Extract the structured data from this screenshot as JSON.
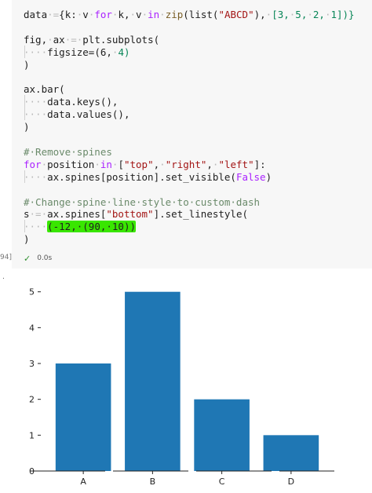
{
  "code_lines": [
    [
      [
        "data",
        "bl"
      ],
      [
        "·=",
        "ws"
      ],
      [
        "{k:",
        "bl"
      ],
      [
        "·",
        "ws"
      ],
      [
        "v",
        "bl"
      ],
      [
        "·",
        "ws"
      ],
      [
        "for",
        "kw"
      ],
      [
        "·",
        "ws"
      ],
      [
        "k,",
        "bl"
      ],
      [
        "·",
        "ws"
      ],
      [
        "v",
        "bl"
      ],
      [
        "·",
        "ws"
      ],
      [
        "in",
        "kw"
      ],
      [
        "·",
        "ws"
      ],
      [
        "zip",
        "fn"
      ],
      [
        "(list(",
        "bl"
      ],
      [
        "\"ABCD\"",
        "str"
      ],
      [
        "),",
        "bl"
      ],
      [
        "·",
        "ws"
      ],
      [
        "[3,",
        "num"
      ],
      [
        "·",
        "ws"
      ],
      [
        "5,",
        "num"
      ],
      [
        "·",
        "ws"
      ],
      [
        "2,",
        "num"
      ],
      [
        "·",
        "ws"
      ],
      [
        "1])}",
        "num"
      ]
    ],
    [],
    [
      [
        "fig,",
        "bl"
      ],
      [
        "·",
        "ws"
      ],
      [
        "ax",
        "bl"
      ],
      [
        "·=·",
        "ws"
      ],
      [
        "plt.subplots(",
        "bl"
      ]
    ],
    [
      [
        "····",
        "ws"
      ],
      [
        "figsize=(6,",
        "bl"
      ],
      [
        "·",
        "ws"
      ],
      [
        "4)",
        "num"
      ]
    ],
    [
      [
        ")",
        "bl"
      ]
    ],
    [],
    [
      [
        "ax.bar(",
        "bl"
      ]
    ],
    [
      [
        "····",
        "ws"
      ],
      [
        "data.keys(),",
        "bl"
      ]
    ],
    [
      [
        "····",
        "ws"
      ],
      [
        "data.values(),",
        "bl"
      ]
    ],
    [
      [
        ")",
        "bl"
      ]
    ],
    [],
    [
      [
        "#·Remove·spines",
        "cm"
      ]
    ],
    [
      [
        "for",
        "kw"
      ],
      [
        "·",
        "ws"
      ],
      [
        "position",
        "bl"
      ],
      [
        "·",
        "ws"
      ],
      [
        "in",
        "kw"
      ],
      [
        "·",
        "ws"
      ],
      [
        "[",
        "bl"
      ],
      [
        "\"top\"",
        "str"
      ],
      [
        ",",
        "bl"
      ],
      [
        "·",
        "ws"
      ],
      [
        "\"right\"",
        "str"
      ],
      [
        ",",
        "bl"
      ],
      [
        "·",
        "ws"
      ],
      [
        "\"left\"",
        "str"
      ],
      [
        "]:",
        "bl"
      ]
    ],
    [
      [
        "····",
        "ws"
      ],
      [
        "ax.spines[position].set_visible(",
        "bl"
      ],
      [
        "False",
        "kw"
      ],
      [
        ")",
        "bl"
      ]
    ],
    [],
    [
      [
        "#·Change·spine·line·style·to·custom·dash",
        "cm"
      ]
    ],
    [
      [
        "s",
        "bl"
      ],
      [
        "·=·",
        "ws"
      ],
      [
        "ax.spines[",
        "bl"
      ],
      [
        "\"bottom\"",
        "str"
      ],
      [
        "].set_linestyle(",
        "bl"
      ]
    ],
    [
      [
        "····",
        "ws"
      ],
      [
        "(-12,·(90,·10))",
        "hl"
      ]
    ],
    [
      [
        ")",
        "bl"
      ]
    ]
  ],
  "exec_count": "94]",
  "status_text": "0.0s",
  "chart_data": {
    "type": "bar",
    "categories": [
      "A",
      "B",
      "C",
      "D"
    ],
    "values": [
      3,
      5,
      2,
      1
    ],
    "ylim": [
      0,
      5.3
    ],
    "yticks": [
      "0",
      "1",
      "2",
      "3",
      "4",
      "5"
    ],
    "color": "#1f77b4",
    "grid": false,
    "visible_spines": [
      "bottom"
    ],
    "bottom_spine_linestyle": "custom dash (-12, (90, 10))"
  }
}
